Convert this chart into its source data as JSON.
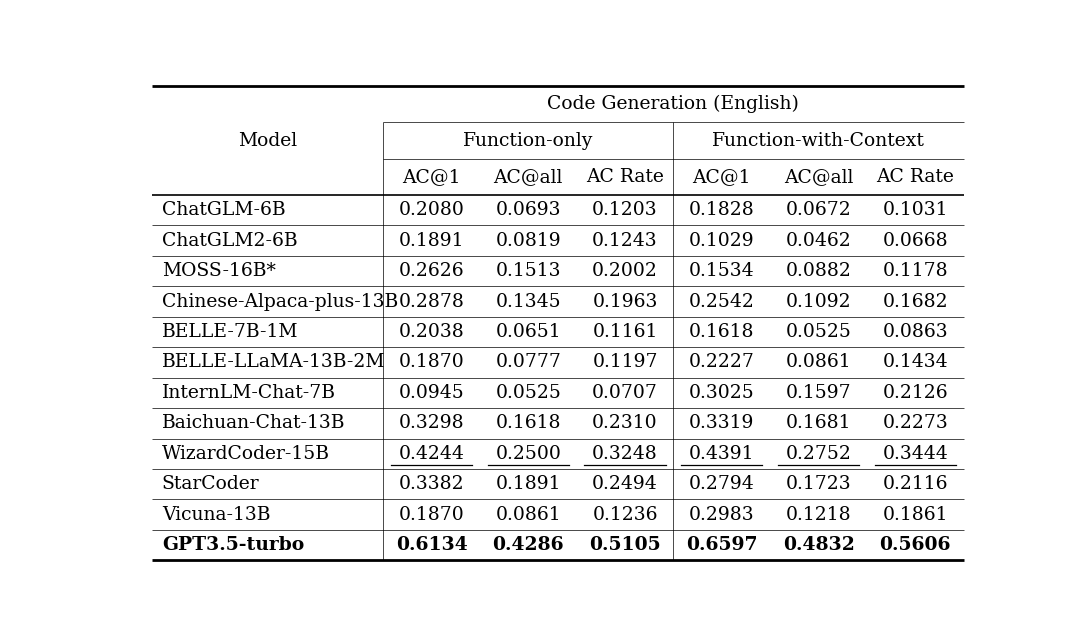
{
  "title": "Code Generation (English)",
  "col_group1": "Function-only",
  "col_group2": "Function-with-Context",
  "subcols": [
    "AC@1",
    "AC@all",
    "AC Rate"
  ],
  "header_model": "Model",
  "models": [
    "ChatGLM-6B",
    "ChatGLM2-6B",
    "MOSS-16B*",
    "Chinese-Alpaca-plus-13B",
    "BELLE-7B-1M",
    "BELLE-LLaMA-13B-2M",
    "InternLM-Chat-7B",
    "Baichuan-Chat-13B",
    "WizardCoder-15B",
    "StarCoder",
    "Vicuna-13B",
    "GPT3.5-turbo"
  ],
  "data_fo": [
    [
      "0.2080",
      "0.0693",
      "0.1203"
    ],
    [
      "0.1891",
      "0.0819",
      "0.1243"
    ],
    [
      "0.2626",
      "0.1513",
      "0.2002"
    ],
    [
      "0.2878",
      "0.1345",
      "0.1963"
    ],
    [
      "0.2038",
      "0.0651",
      "0.1161"
    ],
    [
      "0.1870",
      "0.0777",
      "0.1197"
    ],
    [
      "0.0945",
      "0.0525",
      "0.0707"
    ],
    [
      "0.3298",
      "0.1618",
      "0.2310"
    ],
    [
      "0.4244",
      "0.2500",
      "0.3248"
    ],
    [
      "0.3382",
      "0.1891",
      "0.2494"
    ],
    [
      "0.1870",
      "0.0861",
      "0.1236"
    ],
    [
      "0.6134",
      "0.4286",
      "0.5105"
    ]
  ],
  "data_fwc": [
    [
      "0.1828",
      "0.0672",
      "0.1031"
    ],
    [
      "0.1029",
      "0.0462",
      "0.0668"
    ],
    [
      "0.1534",
      "0.0882",
      "0.1178"
    ],
    [
      "0.2542",
      "0.1092",
      "0.1682"
    ],
    [
      "0.1618",
      "0.0525",
      "0.0863"
    ],
    [
      "0.2227",
      "0.0861",
      "0.1434"
    ],
    [
      "0.3025",
      "0.1597",
      "0.2126"
    ],
    [
      "0.3319",
      "0.1681",
      "0.2273"
    ],
    [
      "0.4391",
      "0.2752",
      "0.3444"
    ],
    [
      "0.2794",
      "0.1723",
      "0.2116"
    ],
    [
      "0.2983",
      "0.1218",
      "0.1861"
    ],
    [
      "0.6597",
      "0.4832",
      "0.5606"
    ]
  ],
  "bold_rows": [
    11
  ],
  "underline_rows": [
    8
  ],
  "bg_color": "#ffffff",
  "text_color": "#000000",
  "font_size": 13.5,
  "line_lw_thick": 2.0,
  "line_lw_medium": 1.2,
  "line_lw_thin": 0.5
}
